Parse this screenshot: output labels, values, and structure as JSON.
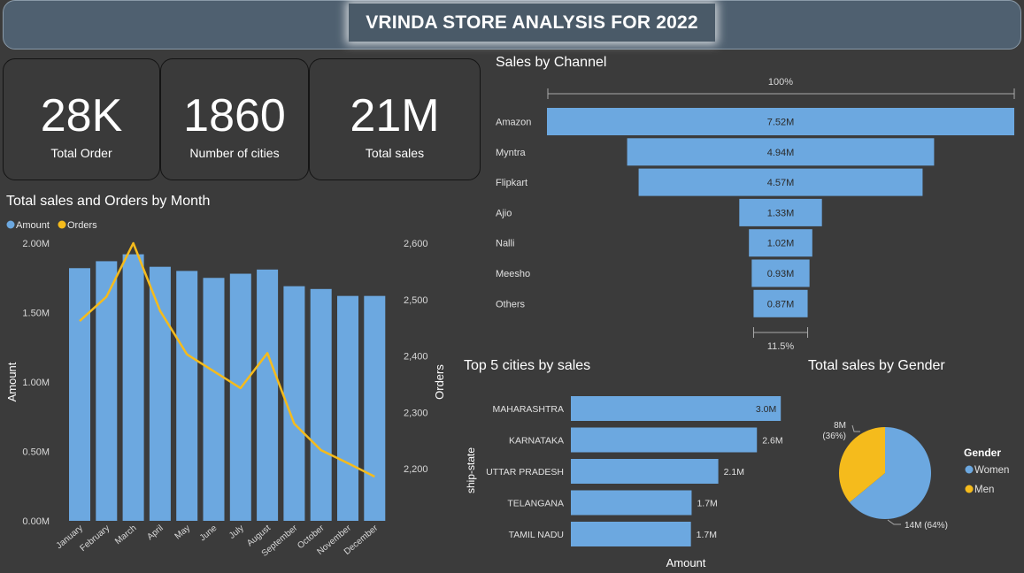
{
  "header": {
    "title": "VRINDA STORE ANALYSIS FOR 2022"
  },
  "kpis": [
    {
      "value": "28K",
      "label": "Total Order"
    },
    {
      "value": "1860",
      "label": "Number of cities"
    },
    {
      "value": "21M",
      "label": "Total sales"
    }
  ],
  "colors": {
    "bar": "#6ca8e0",
    "line": "#f5bb1c",
    "background": "#3b3b3b",
    "header": "#4f6070"
  },
  "chart_data": [
    {
      "type": "bar",
      "title": "Total sales and Orders by Month",
      "legend": [
        "Amount",
        "Orders"
      ],
      "legend_position": "top-left",
      "categories": [
        "January",
        "February",
        "March",
        "April",
        "May",
        "June",
        "July",
        "August",
        "September",
        "October",
        "November",
        "December"
      ],
      "series": [
        {
          "name": "Amount",
          "type": "bar",
          "axis": "left",
          "values": [
            1.82,
            1.87,
            1.92,
            1.83,
            1.8,
            1.75,
            1.78,
            1.81,
            1.69,
            1.67,
            1.62,
            1.62
          ]
        },
        {
          "name": "Orders",
          "type": "line",
          "axis": "right",
          "values": [
            2462,
            2505,
            2600,
            2480,
            2403,
            2373,
            2343,
            2405,
            2280,
            2233,
            2210,
            2186
          ]
        }
      ],
      "ylabel": "Amount",
      "y2label": "Orders",
      "ylim": [
        0,
        2.0
      ],
      "y2lim": [
        2150,
        2600
      ],
      "yticks": [
        "0.00M",
        "0.50M",
        "1.00M",
        "1.50M",
        "2.00M"
      ],
      "y2ticks": [
        "2,200",
        "2,300",
        "2,400",
        "2,500",
        "2,600"
      ],
      "grid": false
    },
    {
      "type": "bar",
      "subtype": "funnel",
      "title": "Sales by Channel",
      "categories": [
        "Amazon",
        "Myntra",
        "Flipkart",
        "Ajio",
        "Nalli",
        "Meesho",
        "Others"
      ],
      "values": [
        7.52,
        4.94,
        4.57,
        1.33,
        1.02,
        0.93,
        0.87
      ],
      "value_labels": [
        "7.52M",
        "4.94M",
        "4.57M",
        "1.33M",
        "1.02M",
        "0.93M",
        "0.87M"
      ],
      "top_percent": "100%",
      "bottom_percent": "11.5%"
    },
    {
      "type": "bar",
      "orientation": "horizontal",
      "title": "Top 5 cities by sales",
      "categories": [
        "MAHARASHTRA",
        "KARNATAKA",
        "UTTAR PRADESH",
        "TELANGANA",
        "TAMIL NADU"
      ],
      "values": [
        2.99,
        2.65,
        2.1,
        1.72,
        1.71
      ],
      "value_labels": [
        "3.0M",
        "2.6M",
        "2.1M",
        "1.7M",
        "1.7M"
      ],
      "ylabel": "ship-state",
      "xlabel": "Amount"
    },
    {
      "type": "pie",
      "title": "Total sales by Gender",
      "legend_title": "Gender",
      "legend_position": "right",
      "labels": [
        "Women",
        "Men"
      ],
      "values": [
        64,
        36
      ],
      "value_labels": [
        "14M (64%)",
        "8M (36%)"
      ]
    }
  ]
}
